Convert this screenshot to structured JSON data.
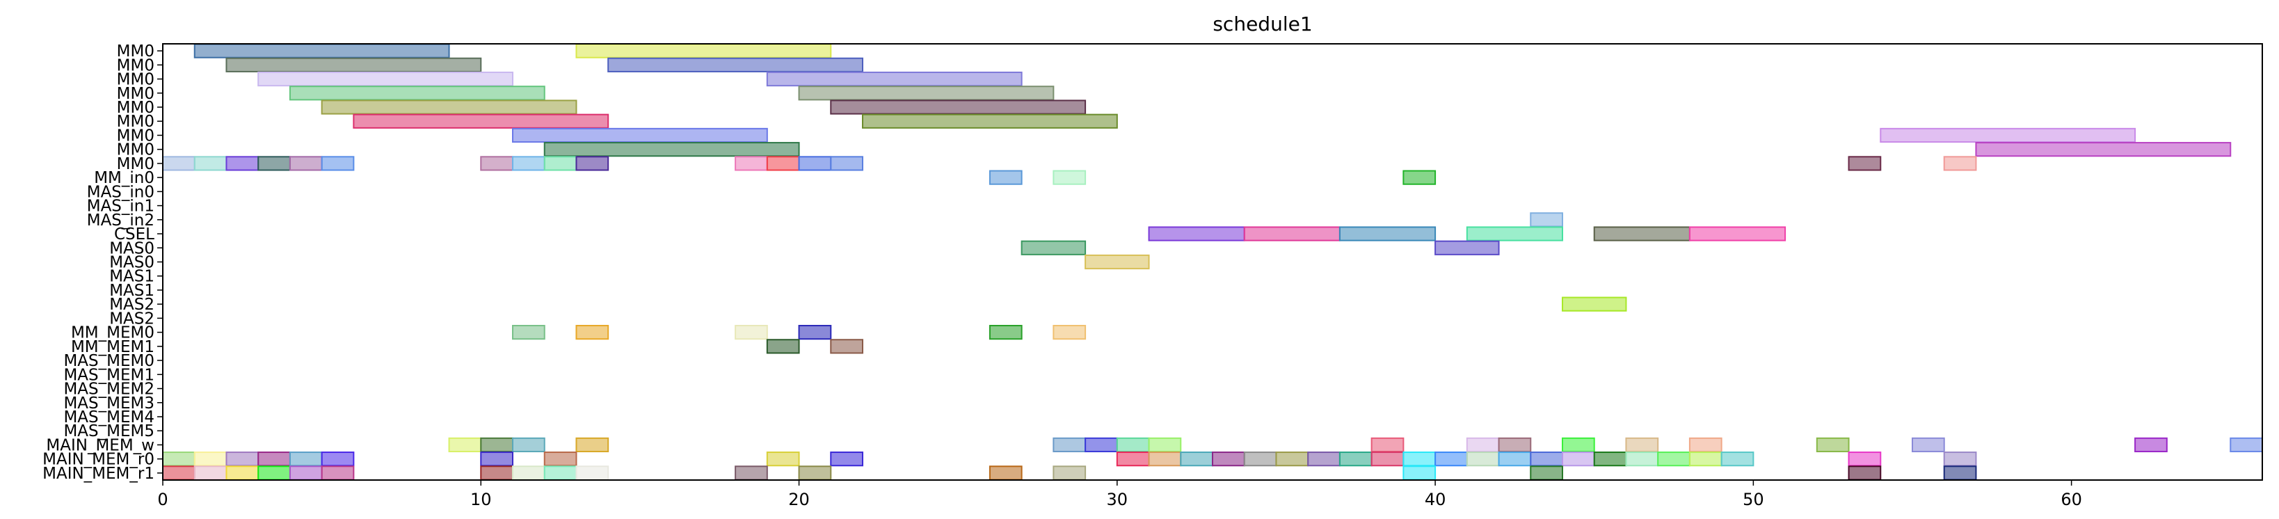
{
  "chart_data": {
    "type": "gantt",
    "title": "schedule1",
    "xlim": [
      0,
      66
    ],
    "x_ticks": [
      0,
      10,
      20,
      30,
      40,
      50,
      60
    ],
    "rows": [
      "MM0",
      "MM0",
      "MM0",
      "MM0",
      "MM0",
      "MM0",
      "MM0",
      "MM0",
      "MM0",
      "MM_in0",
      "MAS_in0",
      "MAS_in1",
      "MAS_in2",
      "CSEL",
      "MAS0",
      "MAS0",
      "MAS1",
      "MAS1",
      "MAS2",
      "MAS2",
      "MM_MEM0",
      "MM_MEM1",
      "MAS_MEM0",
      "MAS_MEM1",
      "MAS_MEM2",
      "MAS_MEM3",
      "MAS_MEM4",
      "MAS_MEM5",
      "MAIN_MEM_w",
      "MAIN_MEM_r0",
      "MAIN_MEM_r1"
    ],
    "tasks": [
      {
        "row": 0,
        "start": 1,
        "end": 9,
        "color": "#3b6ea5"
      },
      {
        "row": 0,
        "start": 13,
        "end": 21,
        "color": "#d9e84a"
      },
      {
        "row": 1,
        "start": 2,
        "end": 10,
        "color": "#5a6e5a"
      },
      {
        "row": 1,
        "start": 14,
        "end": 22,
        "color": "#4d5fbe"
      },
      {
        "row": 2,
        "start": 3,
        "end": 11,
        "color": "#c9b8ef"
      },
      {
        "row": 2,
        "start": 19,
        "end": 27,
        "color": "#7f7ad9"
      },
      {
        "row": 3,
        "start": 4,
        "end": 12,
        "color": "#63c57d"
      },
      {
        "row": 3,
        "start": 20,
        "end": 28,
        "color": "#7c9070"
      },
      {
        "row": 4,
        "start": 5,
        "end": 13,
        "color": "#9aa044"
      },
      {
        "row": 4,
        "start": 21,
        "end": 29,
        "color": "#5b3048"
      },
      {
        "row": 5,
        "start": 6,
        "end": 14,
        "color": "#dc2f6c"
      },
      {
        "row": 5,
        "start": 22,
        "end": 30,
        "color": "#6b8c2b"
      },
      {
        "row": 6,
        "start": 11,
        "end": 19,
        "color": "#6a78e8"
      },
      {
        "row": 6,
        "start": 54,
        "end": 62,
        "color": "#c98ae8"
      },
      {
        "row": 7,
        "start": 12,
        "end": 20,
        "color": "#2e7848"
      },
      {
        "row": 7,
        "start": 57,
        "end": 65,
        "color": "#b840c2"
      },
      {
        "row": 8,
        "start": 0,
        "end": 1,
        "color": "#9fb8e0"
      },
      {
        "row": 8,
        "start": 1,
        "end": 2,
        "color": "#8ed8d0"
      },
      {
        "row": 8,
        "start": 2,
        "end": 3,
        "color": "#6a3ed8"
      },
      {
        "row": 8,
        "start": 3,
        "end": 4,
        "color": "#2f5c5c"
      },
      {
        "row": 8,
        "start": 4,
        "end": 5,
        "color": "#a46ba8"
      },
      {
        "row": 8,
        "start": 5,
        "end": 6,
        "color": "#5a8ee8"
      },
      {
        "row": 8,
        "start": 10,
        "end": 11,
        "color": "#b070a0"
      },
      {
        "row": 8,
        "start": 11,
        "end": 12,
        "color": "#6fb4e8"
      },
      {
        "row": 8,
        "start": 12,
        "end": 13,
        "color": "#6ee0a8"
      },
      {
        "row": 8,
        "start": 13,
        "end": 14,
        "color": "#4a2a98"
      },
      {
        "row": 8,
        "start": 18,
        "end": 19,
        "color": "#ec78b8"
      },
      {
        "row": 8,
        "start": 19,
        "end": 20,
        "color": "#f0404a"
      },
      {
        "row": 8,
        "start": 20,
        "end": 21,
        "color": "#4a6ee0"
      },
      {
        "row": 8,
        "start": 21,
        "end": 22,
        "color": "#5a80e0"
      },
      {
        "row": 8,
        "start": 53,
        "end": 54,
        "color": "#6a2a48"
      },
      {
        "row": 8,
        "start": 56,
        "end": 57,
        "color": "#f09a98"
      },
      {
        "row": 9,
        "start": 26,
        "end": 27,
        "color": "#5a98d8"
      },
      {
        "row": 9,
        "start": 28,
        "end": 29,
        "color": "#a8f0c0"
      },
      {
        "row": 9,
        "start": 39,
        "end": 40,
        "color": "#22b42a"
      },
      {
        "row": 12,
        "start": 43,
        "end": 44,
        "color": "#80b0e0"
      },
      {
        "row": 13,
        "start": 31,
        "end": 34,
        "color": "#7a3ad8"
      },
      {
        "row": 13,
        "start": 34,
        "end": 37,
        "color": "#e03a98"
      },
      {
        "row": 13,
        "start": 37,
        "end": 40,
        "color": "#3a88b8"
      },
      {
        "row": 13,
        "start": 41,
        "end": 44,
        "color": "#48e0a0"
      },
      {
        "row": 13,
        "start": 45,
        "end": 48,
        "color": "#5a6048"
      },
      {
        "row": 13,
        "start": 48,
        "end": 51,
        "color": "#f040a8"
      },
      {
        "row": 14,
        "start": 27,
        "end": 29,
        "color": "#3a9860"
      },
      {
        "row": 14,
        "start": 40,
        "end": 42,
        "color": "#5a4ac8"
      },
      {
        "row": 15,
        "start": 29,
        "end": 31,
        "color": "#d8c058"
      },
      {
        "row": 18,
        "start": 44,
        "end": 46,
        "color": "#a8e828"
      },
      {
        "row": 20,
        "start": 11,
        "end": 12,
        "color": "#78c088"
      },
      {
        "row": 20,
        "start": 13,
        "end": 14,
        "color": "#e8a828"
      },
      {
        "row": 20,
        "start": 18,
        "end": 19,
        "color": "#e8e8b8"
      },
      {
        "row": 20,
        "start": 20,
        "end": 21,
        "color": "#2a28b8"
      },
      {
        "row": 20,
        "start": 26,
        "end": 27,
        "color": "#28a028"
      },
      {
        "row": 20,
        "start": 28,
        "end": 29,
        "color": "#f0c070"
      },
      {
        "row": 21,
        "start": 19,
        "end": 20,
        "color": "#2a5a2a"
      },
      {
        "row": 21,
        "start": 21,
        "end": 22,
        "color": "#8a5a48"
      },
      {
        "row": 28,
        "start": 9,
        "end": 10,
        "color": "#d8f068"
      },
      {
        "row": 28,
        "start": 10,
        "end": 11,
        "color": "#4a7a3a"
      },
      {
        "row": 28,
        "start": 11,
        "end": 12,
        "color": "#5aa8b8"
      },
      {
        "row": 28,
        "start": 13,
        "end": 14,
        "color": "#d8a828"
      },
      {
        "row": 28,
        "start": 28,
        "end": 29,
        "color": "#6a9ac8"
      },
      {
        "row": 28,
        "start": 29,
        "end": 30,
        "color": "#3a3ad8"
      },
      {
        "row": 28,
        "start": 30,
        "end": 31,
        "color": "#5ad89a"
      },
      {
        "row": 28,
        "start": 31,
        "end": 32,
        "color": "#98f068"
      },
      {
        "row": 28,
        "start": 38,
        "end": 39,
        "color": "#e85a78"
      },
      {
        "row": 28,
        "start": 41,
        "end": 42,
        "color": "#d8b8e8"
      },
      {
        "row": 28,
        "start": 42,
        "end": 43,
        "color": "#9a6a78"
      },
      {
        "row": 28,
        "start": 44,
        "end": 45,
        "color": "#3af03a"
      },
      {
        "row": 28,
        "start": 46,
        "end": 47,
        "color": "#d8b888"
      },
      {
        "row": 28,
        "start": 48,
        "end": 49,
        "color": "#f0a888"
      },
      {
        "row": 28,
        "start": 52,
        "end": 53,
        "color": "#88b848"
      },
      {
        "row": 28,
        "start": 55,
        "end": 56,
        "color": "#8a8ad8"
      },
      {
        "row": 28,
        "start": 62,
        "end": 63,
        "color": "#9a28c8"
      },
      {
        "row": 28,
        "start": 65,
        "end": 66,
        "color": "#6a88e8"
      },
      {
        "row": 29,
        "start": 0,
        "end": 1,
        "color": "#98d878"
      },
      {
        "row": 29,
        "start": 1,
        "end": 2,
        "color": "#f8f098"
      },
      {
        "row": 29,
        "start": 2,
        "end": 3,
        "color": "#a07ac0"
      },
      {
        "row": 29,
        "start": 3,
        "end": 4,
        "color": "#982888"
      },
      {
        "row": 29,
        "start": 4,
        "end": 5,
        "color": "#5aa0c8"
      },
      {
        "row": 29,
        "start": 5,
        "end": 6,
        "color": "#4a28e8"
      },
      {
        "row": 29,
        "start": 10,
        "end": 11,
        "color": "#3a2ac8"
      },
      {
        "row": 29,
        "start": 12,
        "end": 13,
        "color": "#b86848"
      },
      {
        "row": 29,
        "start": 19,
        "end": 20,
        "color": "#d8d038"
      },
      {
        "row": 29,
        "start": 21,
        "end": 22,
        "color": "#3a28d8"
      },
      {
        "row": 29,
        "start": 30,
        "end": 31,
        "color": "#e82858"
      },
      {
        "row": 29,
        "start": 31,
        "end": 32,
        "color": "#d89858"
      },
      {
        "row": 29,
        "start": 32,
        "end": 33,
        "color": "#4aa8b8"
      },
      {
        "row": 29,
        "start": 33,
        "end": 34,
        "color": "#8a2888"
      },
      {
        "row": 29,
        "start": 34,
        "end": 35,
        "color": "#8a8a8a"
      },
      {
        "row": 29,
        "start": 35,
        "end": 36,
        "color": "#9a9a48"
      },
      {
        "row": 29,
        "start": 36,
        "end": 37,
        "color": "#7858a8"
      },
      {
        "row": 29,
        "start": 37,
        "end": 38,
        "color": "#28a888"
      },
      {
        "row": 29,
        "start": 38,
        "end": 39,
        "color": "#d83868"
      },
      {
        "row": 29,
        "start": 39,
        "end": 40,
        "color": "#28e8f8"
      },
      {
        "row": 29,
        "start": 40,
        "end": 41,
        "color": "#3a88f8"
      },
      {
        "row": 29,
        "start": 41,
        "end": 42,
        "color": "#b8d8b8"
      },
      {
        "row": 29,
        "start": 42,
        "end": 43,
        "color": "#48a8e8"
      },
      {
        "row": 29,
        "start": 43,
        "end": 44,
        "color": "#4a68d8"
      },
      {
        "row": 29,
        "start": 44,
        "end": 45,
        "color": "#b898e8"
      },
      {
        "row": 29,
        "start": 45,
        "end": 46,
        "color": "#1a7a1a"
      },
      {
        "row": 29,
        "start": 46,
        "end": 47,
        "color": "#98e8b8"
      },
      {
        "row": 29,
        "start": 47,
        "end": 48,
        "color": "#58f058"
      },
      {
        "row": 29,
        "start": 48,
        "end": 49,
        "color": "#b8f058"
      },
      {
        "row": 29,
        "start": 49,
        "end": 50,
        "color": "#58c8c8"
      },
      {
        "row": 29,
        "start": 53,
        "end": 54,
        "color": "#e838c8"
      },
      {
        "row": 29,
        "start": 56,
        "end": 57,
        "color": "#9a88c8"
      },
      {
        "row": 30,
        "start": 0,
        "end": 1,
        "color": "#d83a48"
      },
      {
        "row": 30,
        "start": 1,
        "end": 2,
        "color": "#e8b8c8"
      },
      {
        "row": 30,
        "start": 2,
        "end": 3,
        "color": "#f0d838"
      },
      {
        "row": 30,
        "start": 3,
        "end": 4,
        "color": "#18e818"
      },
      {
        "row": 30,
        "start": 4,
        "end": 5,
        "color": "#a858c8"
      },
      {
        "row": 30,
        "start": 5,
        "end": 6,
        "color": "#b8388a"
      },
      {
        "row": 30,
        "start": 10,
        "end": 11,
        "color": "#982828"
      },
      {
        "row": 30,
        "start": 11,
        "end": 12,
        "color": "#d8e8c8"
      },
      {
        "row": 30,
        "start": 12,
        "end": 13,
        "color": "#78e8b8"
      },
      {
        "row": 30,
        "start": 13,
        "end": 14,
        "color": "#e8e8e0"
      },
      {
        "row": 30,
        "start": 18,
        "end": 19,
        "color": "#7a5a68"
      },
      {
        "row": 30,
        "start": 20,
        "end": 21,
        "color": "#8a8a48"
      },
      {
        "row": 30,
        "start": 26,
        "end": 27,
        "color": "#b86818"
      },
      {
        "row": 30,
        "start": 28,
        "end": 29,
        "color": "#a8a880"
      },
      {
        "row": 30,
        "start": 39,
        "end": 40,
        "color": "#28e8f8"
      },
      {
        "row": 30,
        "start": 43,
        "end": 44,
        "color": "#287828"
      },
      {
        "row": 30,
        "start": 53,
        "end": 54,
        "color": "#4a0a28"
      },
      {
        "row": 30,
        "start": 56,
        "end": 57,
        "color": "#1a2a7a"
      }
    ]
  }
}
